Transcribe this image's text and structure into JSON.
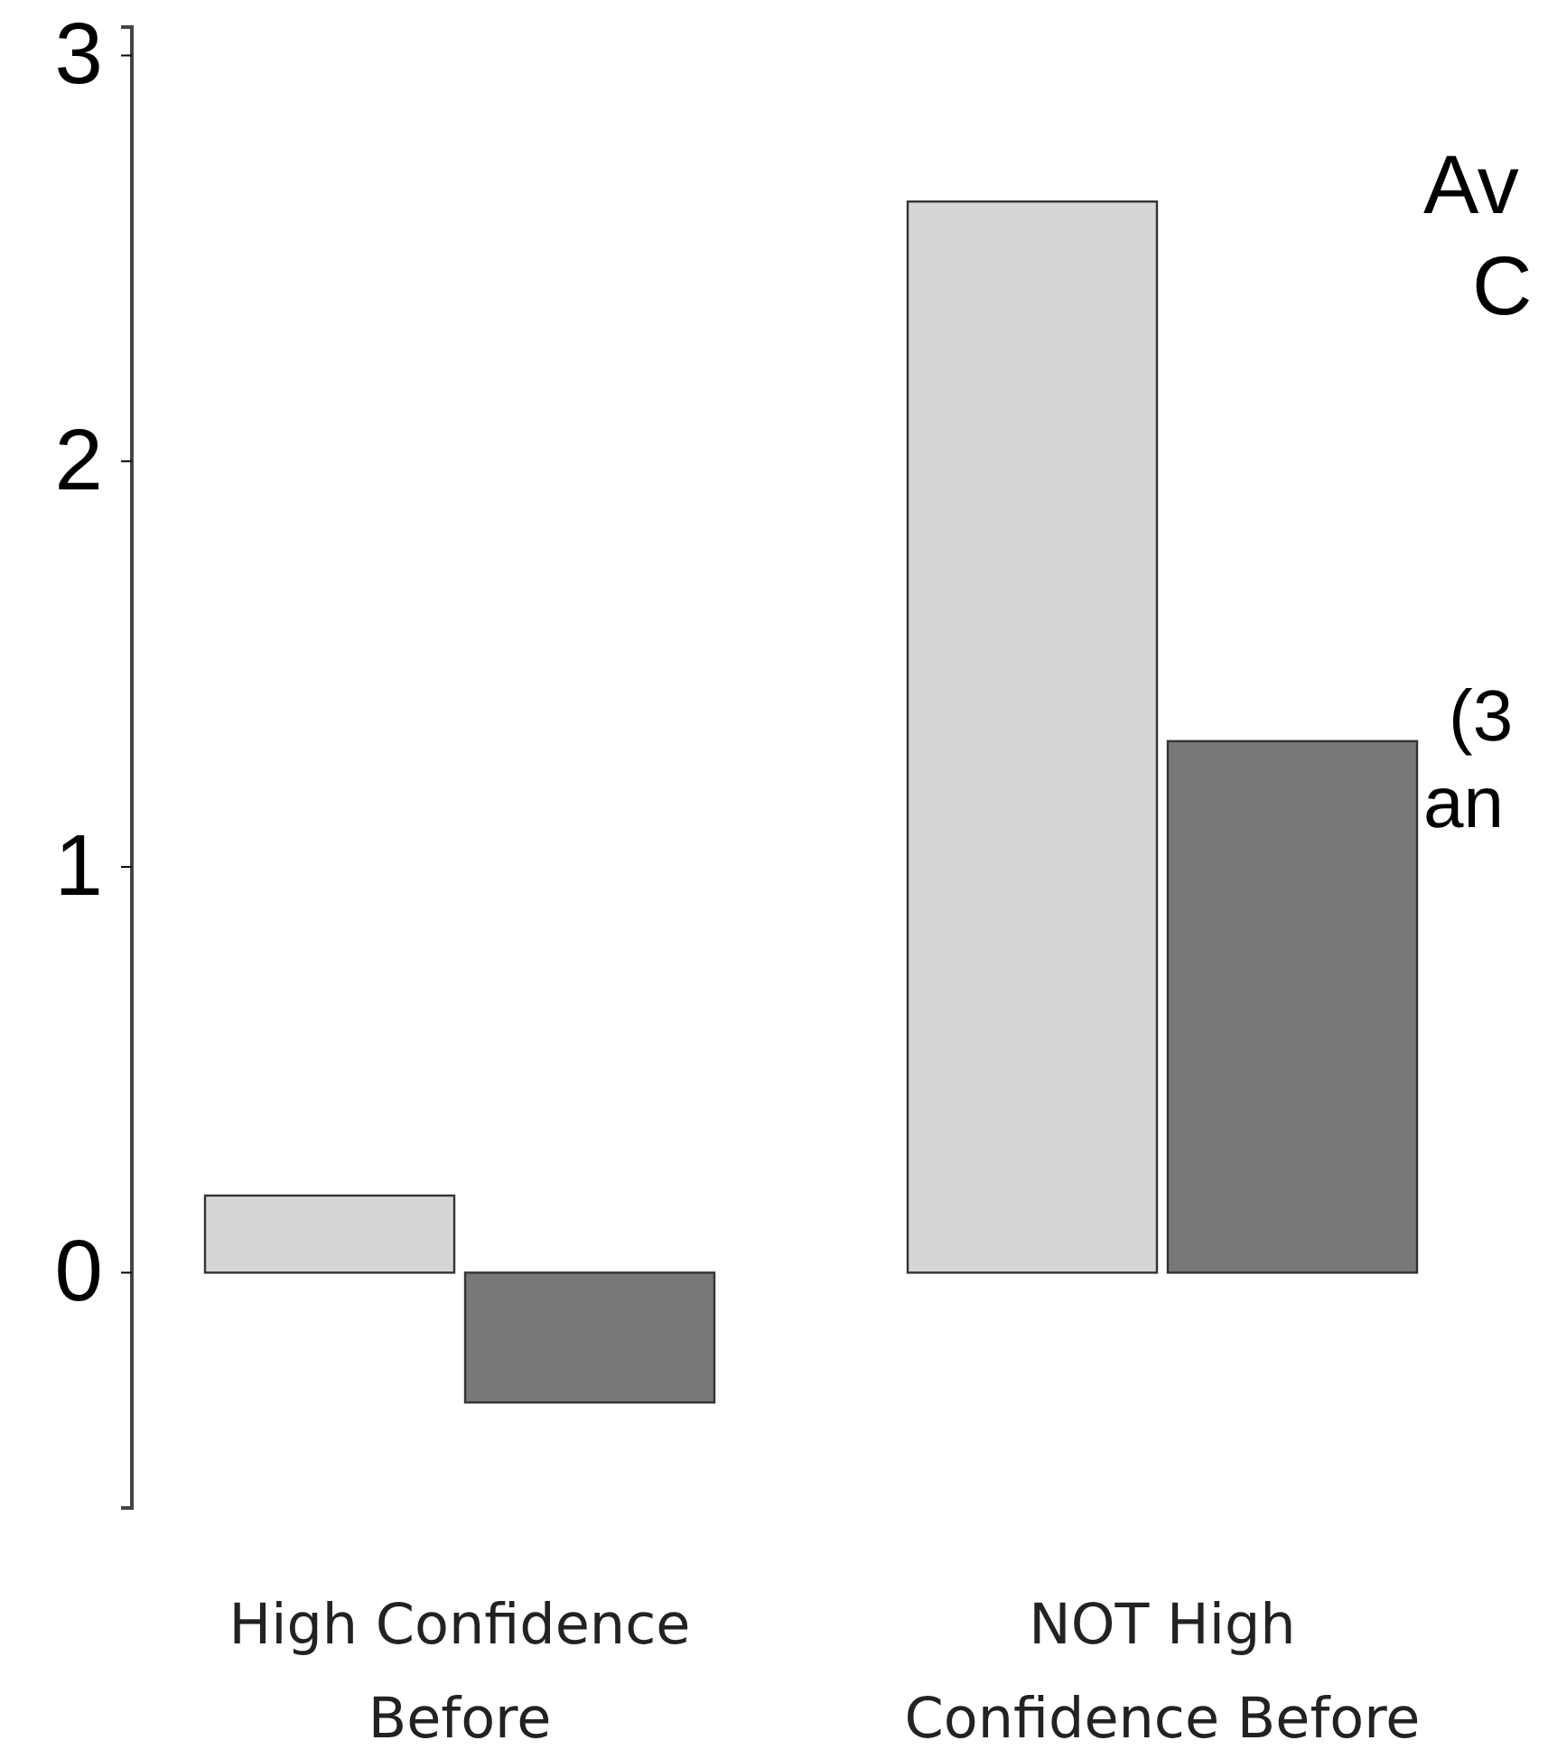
{
  "chart_data": {
    "type": "bar",
    "categories": [
      "High Confidence Before",
      "NOT High Confidence Before"
    ],
    "series": [
      {
        "color": "#d6d6d6",
        "values": [
          0.19,
          2.64
        ]
      },
      {
        "color": "#787878",
        "values": [
          -0.32,
          1.31
        ]
      }
    ],
    "ylim": [
      -0.58,
      3.07
    ],
    "yticks": [
      0,
      1,
      2,
      3
    ],
    "grid": false,
    "annotations": [
      "Av",
      "C",
      "(3",
      "an"
    ]
  }
}
